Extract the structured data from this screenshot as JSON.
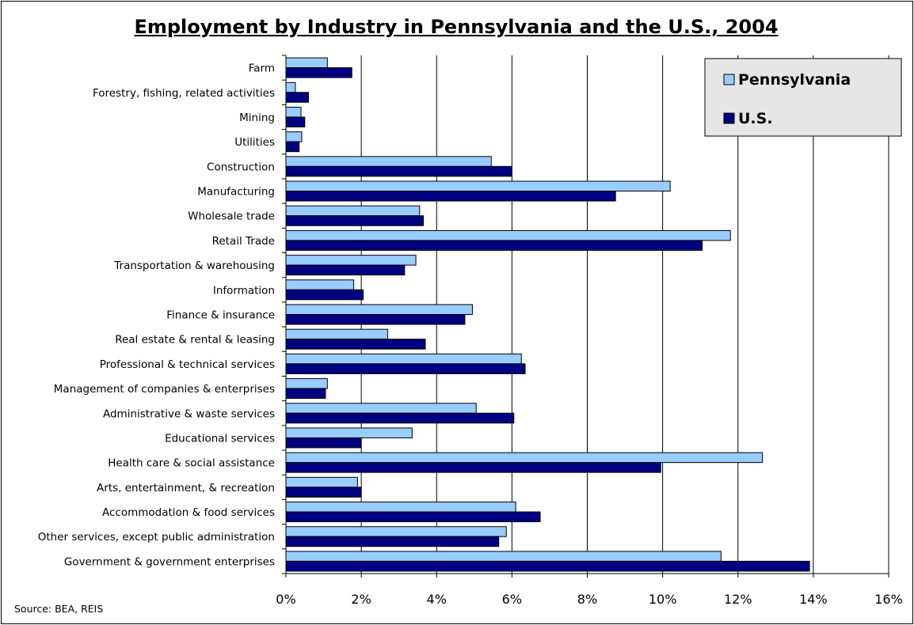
{
  "chart_data": {
    "type": "bar",
    "orientation": "horizontal",
    "title": "Employment by Industry in Pennsylvania and the U.S., 2004",
    "categories": [
      "Farm",
      "Forestry, fishing, related activities",
      "Mining",
      "Utilities",
      "Construction",
      "Manufacturing",
      "Wholesale trade",
      "Retail Trade",
      "Transportation & warehousing",
      "Information",
      "Finance & insurance",
      "Real estate & rental & leasing",
      "Professional & technical services",
      "Management of companies & enterprises",
      "Administrative & waste services",
      "Educational services",
      "Health care & social assistance",
      "Arts, entertainment, & recreation",
      "Accommodation & food services",
      "Other services, except public administration",
      "Government & government enterprises"
    ],
    "series": [
      {
        "name": "Pennsylvania",
        "color": "#99ccff",
        "values": [
          1.1,
          0.25,
          0.4,
          0.42,
          5.45,
          10.2,
          3.55,
          11.8,
          3.45,
          1.8,
          4.95,
          2.7,
          6.25,
          1.1,
          5.05,
          3.35,
          12.65,
          1.9,
          6.1,
          5.85,
          11.55
        ]
      },
      {
        "name": "U.S.",
        "color": "#000080",
        "values": [
          1.75,
          0.6,
          0.5,
          0.35,
          6.0,
          8.75,
          3.65,
          11.05,
          3.15,
          2.05,
          4.75,
          3.7,
          6.35,
          1.05,
          6.05,
          2.0,
          9.95,
          2.0,
          6.75,
          5.65,
          13.9
        ]
      }
    ],
    "xlim": [
      0,
      16
    ],
    "x_ticks": [
      "0%",
      "2%",
      "4%",
      "6%",
      "8%",
      "10%",
      "12%",
      "14%",
      "16%"
    ],
    "xlabel": "",
    "ylabel": "",
    "grid": "vertical",
    "legend_position": "top-right"
  },
  "source": "Source: BEA, REIS"
}
